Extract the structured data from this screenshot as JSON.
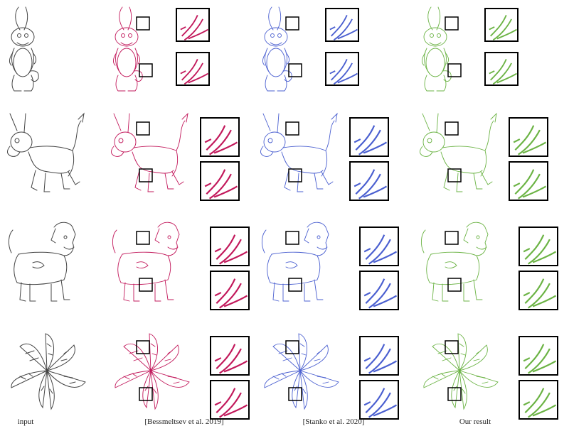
{
  "figure": {
    "captions": {
      "input": "input",
      "bessmeltsev": "[Bessmeltsev et al. 2019]",
      "stanko": "[Stanko et al. 2020]",
      "ours": "Our result"
    },
    "rows": [
      "rabbit",
      "donkey",
      "dog",
      "leaf"
    ],
    "methods": [
      {
        "key": "input",
        "color": "#444444"
      },
      {
        "key": "bessmeltsev",
        "color": "#c2185b"
      },
      {
        "key": "stanko",
        "color": "#4a5fd0"
      },
      {
        "key": "ours",
        "color": "#6bb344"
      }
    ]
  }
}
